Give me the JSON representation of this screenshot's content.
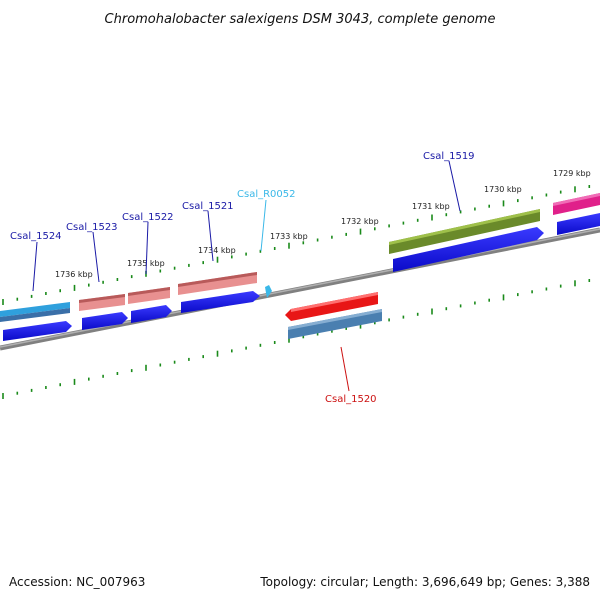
{
  "title": "Chromohalobacter salexigens DSM 3043, complete genome",
  "footer": {
    "accession": "Accession: NC_007963",
    "summary": "Topology: circular; Length: 3,696,649 bp; Genes: 3,388"
  },
  "scale_labels": [
    "1729 kbp",
    "1730 kbp",
    "1731 kbp",
    "1732 kbp",
    "1733 kbp",
    "1734 kbp",
    "1735 kbp",
    "1736 kbp"
  ],
  "genes": [
    {
      "name": "Csal_1524",
      "color": "#2fa0dd"
    },
    {
      "name": "Csal_1523",
      "color": "#e38a8a"
    },
    {
      "name": "Csal_1522",
      "color": "#e38a8a"
    },
    {
      "name": "Csal_1521",
      "color": "#e38a8a"
    },
    {
      "name": "Csal_R0052",
      "color": "#3ab8e8"
    },
    {
      "name": "Csal_1519",
      "color": "#6a8a2a"
    },
    {
      "name": "Csal_1520",
      "color": "#e31b1b"
    }
  ],
  "colors": {
    "cds": "#1414e6",
    "backbone": "#808080",
    "tick": "#1a8a1a",
    "label_blue": "#1a1aa6",
    "label_cyan": "#3ab8e8",
    "label_red": "#cc1111",
    "magenta": "#e0208a",
    "steelblue": "#4a7fb0"
  }
}
